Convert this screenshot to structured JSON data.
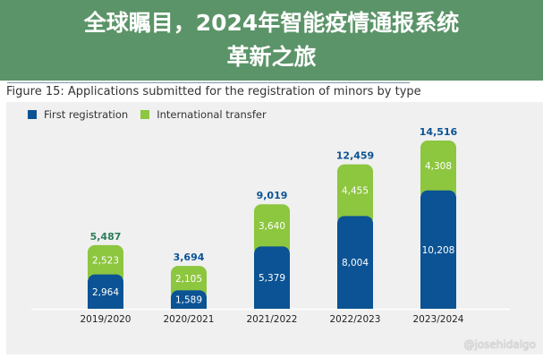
{
  "figure_title": "Figure 15: Applications submitted for the registration of minors by type",
  "banner": {
    "line1": "全球瞩目，2024年智能疫情通报系统",
    "line2": "革新之旅"
  },
  "watermark": "@josehidalgo",
  "chart_data": {
    "type": "bar",
    "stacked": true,
    "categories": [
      "2019/2020",
      "2020/2021",
      "2021/2022",
      "2022/2023",
      "2023/2024"
    ],
    "series": [
      {
        "name": "First registration",
        "color": "#0b5394",
        "values": [
          2964,
          1589,
          5379,
          8004,
          10208
        ]
      },
      {
        "name": "International transfer",
        "color": "#8dc63f",
        "values": [
          2523,
          2105,
          3640,
          4455,
          4308
        ]
      }
    ],
    "totals": [
      "5,487",
      "3,694",
      "9,019",
      "12,459",
      "14,516"
    ],
    "segment_labels": [
      [
        "2,964",
        "1,589",
        "5,379",
        "8,004",
        "10,208"
      ],
      [
        "2,523",
        "2,105",
        "3,640",
        "4,455",
        "4,308"
      ]
    ],
    "legend": "top-left",
    "grid": false,
    "ylim": [
      0,
      14516
    ]
  }
}
